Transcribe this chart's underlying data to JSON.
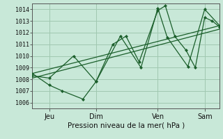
{
  "xlabel": "Pression niveau de la mer( hPa )",
  "bg_color": "#c8e8d8",
  "grid_color": "#a0c8b0",
  "line_color": "#1a5e2a",
  "ylim": [
    1005.5,
    1014.5
  ],
  "yticks": [
    1006,
    1007,
    1008,
    1009,
    1010,
    1011,
    1012,
    1013,
    1014
  ],
  "xlim": [
    0.0,
    1.0
  ],
  "xtick_positions": [
    0.09,
    0.34,
    0.67,
    0.92
  ],
  "xtick_labels": [
    "Jeu",
    "Dim",
    "Ven",
    "Sam"
  ],
  "series": [
    {
      "x": [
        0.0,
        0.09,
        0.22,
        0.34,
        0.43,
        0.5,
        0.57,
        0.67,
        0.71,
        0.76,
        0.82,
        0.87,
        0.92,
        0.96,
        1.0
      ],
      "y": [
        1008.3,
        1008.1,
        1010.0,
        1007.8,
        1011.0,
        1011.7,
        1009.5,
        1013.9,
        1014.3,
        1011.7,
        1010.5,
        1009.0,
        1013.3,
        1013.0,
        1012.5
      ],
      "has_markers": true
    },
    {
      "x": [
        0.0,
        0.09,
        0.16,
        0.27,
        0.34,
        0.47,
        0.58,
        0.67,
        0.72,
        0.83,
        0.92,
        1.0
      ],
      "y": [
        1008.5,
        1007.5,
        1007.0,
        1006.3,
        1007.8,
        1011.7,
        1009.0,
        1014.1,
        1011.6,
        1009.1,
        1014.0,
        1012.6
      ],
      "has_markers": true
    },
    {
      "x": [
        0.0,
        1.0
      ],
      "y": [
        1008.1,
        1012.3
      ],
      "has_markers": false
    },
    {
      "x": [
        0.0,
        1.0
      ],
      "y": [
        1008.5,
        1012.6
      ],
      "has_markers": false
    }
  ]
}
